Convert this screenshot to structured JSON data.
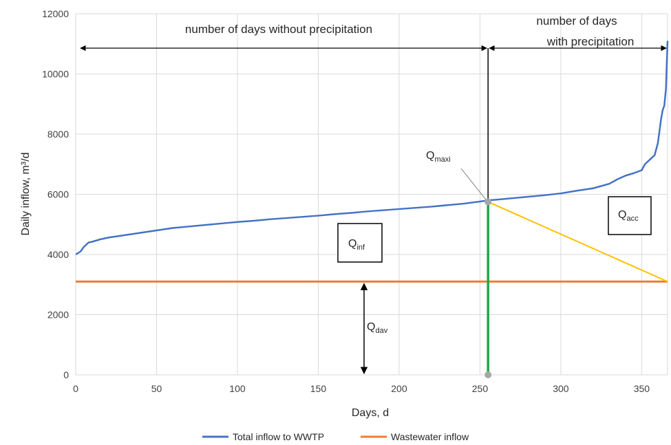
{
  "colors": {
    "total_inflow": "#4472C4",
    "wastewater": "#ED7D31",
    "accumulation": "#FFC000",
    "split_line": "#1FA64A",
    "grid": "#d9d9d9",
    "arrow": "#000000",
    "marker": "#a6a6a6"
  },
  "chart_data": {
    "type": "line",
    "xlabel": "Days, d",
    "ylabel": "Daily inflow, m³/d",
    "xlim": [
      0,
      366
    ],
    "ylim": [
      0,
      12000
    ],
    "x_ticks": [
      "0",
      "50",
      "100",
      "150",
      "200",
      "250",
      "300",
      "350"
    ],
    "y_ticks": [
      "0",
      "2000",
      "4000",
      "6000",
      "8000",
      "10000",
      "12000"
    ],
    "grid": true,
    "legend_position": "bottom",
    "series": [
      {
        "name": "Total inflow to WWTP",
        "x": [
          0,
          3,
          5,
          8,
          10,
          15,
          20,
          30,
          40,
          50,
          60,
          70,
          80,
          90,
          100,
          110,
          120,
          130,
          140,
          150,
          160,
          170,
          180,
          190,
          200,
          210,
          220,
          230,
          240,
          250,
          255,
          260,
          270,
          280,
          290,
          300,
          310,
          320,
          330,
          335,
          340,
          345,
          350,
          352,
          355,
          358,
          360,
          362,
          363,
          364,
          365,
          366
        ],
        "y": [
          4000,
          4100,
          4250,
          4400,
          4420,
          4500,
          4560,
          4640,
          4720,
          4800,
          4880,
          4930,
          4980,
          5030,
          5080,
          5120,
          5170,
          5210,
          5250,
          5290,
          5340,
          5380,
          5430,
          5470,
          5510,
          5550,
          5590,
          5640,
          5690,
          5760,
          5800,
          5820,
          5870,
          5920,
          5970,
          6030,
          6120,
          6200,
          6350,
          6500,
          6620,
          6700,
          6800,
          7000,
          7150,
          7300,
          7700,
          8500,
          8800,
          8950,
          9500,
          11100
        ]
      },
      {
        "name": "Wastewater inflow",
        "x": [
          0,
          366
        ],
        "y": [
          3100,
          3100
        ]
      }
    ],
    "annotations": {
      "left_label": "number of days without precipitation",
      "right_label_line1": "number of days",
      "right_label_line2": "with precipitation",
      "split_day": 255,
      "split_value": 5750,
      "q_inf": {
        "main": "Q",
        "sub": "inf"
      },
      "q_acc": {
        "main": "Q",
        "sub": "acc"
      },
      "q_maxi": {
        "main": "Q",
        "sub": "maxi"
      },
      "q_dav": {
        "main": "Q",
        "sub": "dav"
      }
    }
  }
}
